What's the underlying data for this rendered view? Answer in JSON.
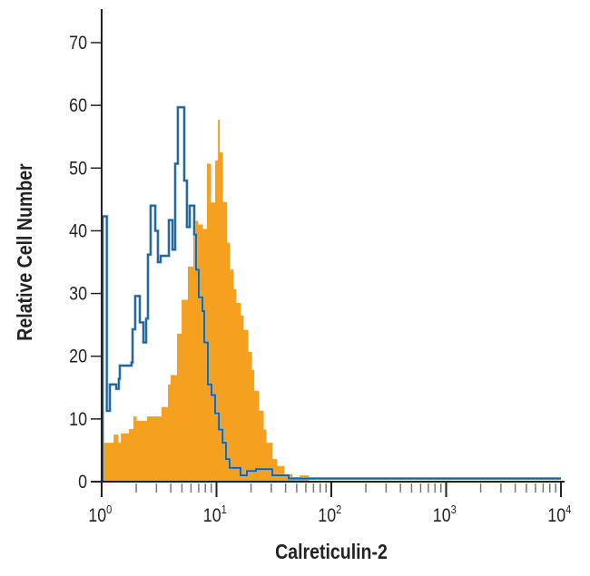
{
  "chart_data": {
    "type": "histogram",
    "title": "",
    "xlabel": "Calreticulin-2",
    "ylabel": "Relative Cell Number",
    "x_scale": "log",
    "xlim": [
      1,
      10000
    ],
    "ylim": [
      0,
      70
    ],
    "x_ticks": [
      {
        "base": "10",
        "exp": "0",
        "value": 1
      },
      {
        "base": "10",
        "exp": "1",
        "value": 10
      },
      {
        "base": "10",
        "exp": "2",
        "value": 100
      },
      {
        "base": "10",
        "exp": "3",
        "value": 1000
      },
      {
        "base": "10",
        "exp": "4",
        "value": 10000
      }
    ],
    "y_ticks": [
      "0",
      "10",
      "20",
      "30",
      "40",
      "50",
      "60",
      "70"
    ],
    "grid": false,
    "legend": "none",
    "series": [
      {
        "style": "filled",
        "color": "#F5A01E",
        "bins": [
          [
            1.02,
            6.2
          ],
          [
            1.27,
            7.5
          ],
          [
            1.39,
            6.2
          ],
          [
            1.47,
            7.7
          ],
          [
            1.73,
            8.4
          ],
          [
            1.89,
            10.4
          ],
          [
            2.0,
            9.7
          ],
          [
            2.48,
            10.4
          ],
          [
            3.32,
            11.9
          ],
          [
            3.78,
            15.5
          ],
          [
            3.99,
            17
          ],
          [
            4.53,
            23.6
          ],
          [
            4.97,
            29
          ],
          [
            5.63,
            34.3
          ],
          [
            6.28,
            41.6
          ],
          [
            6.88,
            41
          ],
          [
            7.54,
            40.3
          ],
          [
            8.26,
            50.7
          ],
          [
            8.89,
            44.5
          ],
          [
            9.73,
            51.2
          ],
          [
            10.3,
            57.7
          ],
          [
            10.6,
            52.5
          ],
          [
            11.3,
            44.6
          ],
          [
            12.3,
            38.1
          ],
          [
            13.0,
            33.8
          ],
          [
            14.0,
            30.7
          ],
          [
            14.8,
            28.5
          ],
          [
            16.2,
            26.5
          ],
          [
            17.1,
            24.2
          ],
          [
            18.8,
            20.7
          ],
          [
            20.2,
            17.8
          ],
          [
            21.2,
            14.5
          ],
          [
            23.3,
            11.3
          ],
          [
            25.6,
            8.3
          ],
          [
            27.0,
            6.2
          ],
          [
            30.6,
            3.6
          ],
          [
            33.5,
            2.5
          ],
          [
            38.8,
            1.2
          ],
          [
            45.6,
            0.7
          ],
          [
            52.8,
            1.0
          ],
          [
            63.4,
            0
          ]
        ]
      },
      {
        "style": "outline",
        "color": "#1F5F8E",
        "bins": [
          [
            1.02,
            42.3
          ],
          [
            1.11,
            11.3
          ],
          [
            1.18,
            15.5
          ],
          [
            1.34,
            14.8
          ],
          [
            1.41,
            16.4
          ],
          [
            1.44,
            18.5
          ],
          [
            1.82,
            19
          ],
          [
            1.86,
            24.3
          ],
          [
            1.96,
            29.6
          ],
          [
            2.15,
            25.4
          ],
          [
            2.31,
            22.2
          ],
          [
            2.44,
            26
          ],
          [
            2.53,
            36.2
          ],
          [
            2.67,
            44
          ],
          [
            2.93,
            40
          ],
          [
            3.09,
            35
          ],
          [
            3.26,
            36
          ],
          [
            3.85,
            41.7
          ],
          [
            4.14,
            37
          ],
          [
            4.37,
            50.7
          ],
          [
            4.61,
            59.7
          ],
          [
            5.24,
            48
          ],
          [
            5.53,
            40.6
          ],
          [
            5.85,
            44
          ],
          [
            6.4,
            39.4
          ],
          [
            6.64,
            33.8
          ],
          [
            7.01,
            29.4
          ],
          [
            7.54,
            27.2
          ],
          [
            7.82,
            22.2
          ],
          [
            8.41,
            15.5
          ],
          [
            9.05,
            13.8
          ],
          [
            9.73,
            10.9
          ],
          [
            10.5,
            8.3
          ],
          [
            11.3,
            6.2
          ],
          [
            12.1,
            3.6
          ],
          [
            13.0,
            2.2
          ],
          [
            16.2,
            1
          ],
          [
            18.4,
            1.7
          ],
          [
            22.1,
            2
          ],
          [
            30.6,
            1
          ],
          [
            42.5,
            0.5
          ],
          [
            10000,
            0.5
          ]
        ]
      }
    ]
  }
}
